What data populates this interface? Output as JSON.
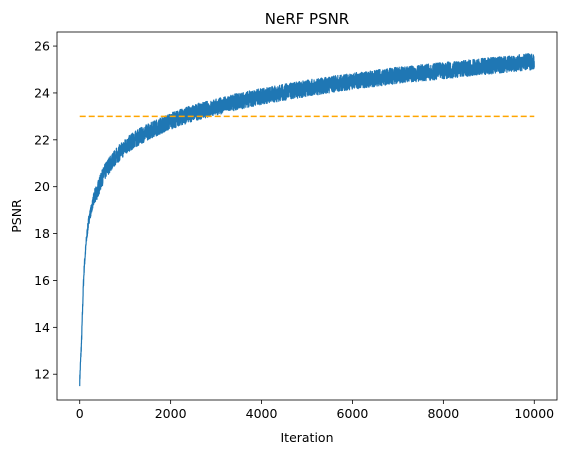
{
  "chart_data": {
    "type": "line",
    "title": "NeRF PSNR",
    "xlabel": "Iteration",
    "ylabel": "PSNR",
    "xlim": [
      -500,
      10500
    ],
    "ylim": [
      10.9,
      26.6
    ],
    "x_ticks": [
      0,
      2000,
      4000,
      6000,
      8000,
      10000
    ],
    "y_ticks": [
      12,
      14,
      16,
      18,
      20,
      22,
      24,
      26
    ],
    "grid": false,
    "legend": "none",
    "series": [
      {
        "style": "solid",
        "color": "#1f77b4",
        "noise_band": 0.35,
        "points": [
          [
            0,
            11.7
          ],
          [
            20,
            12.6
          ],
          [
            40,
            13.4
          ],
          [
            60,
            14.6
          ],
          [
            80,
            15.8
          ],
          [
            100,
            16.6
          ],
          [
            150,
            17.8
          ],
          [
            200,
            18.6
          ],
          [
            300,
            19.4
          ],
          [
            400,
            19.9
          ],
          [
            500,
            20.4
          ],
          [
            600,
            20.8
          ],
          [
            800,
            21.3
          ],
          [
            1000,
            21.7
          ],
          [
            1200,
            22.0
          ],
          [
            1500,
            22.35
          ],
          [
            2000,
            22.8
          ],
          [
            2500,
            23.15
          ],
          [
            3000,
            23.4
          ],
          [
            3500,
            23.65
          ],
          [
            4000,
            23.85
          ],
          [
            5000,
            24.2
          ],
          [
            6000,
            24.5
          ],
          [
            7000,
            24.75
          ],
          [
            8000,
            24.95
          ],
          [
            9000,
            25.15
          ],
          [
            10000,
            25.35
          ]
        ]
      },
      {
        "style": "dashed",
        "color": "#ffa500",
        "points": [
          [
            0,
            23.0
          ],
          [
            10000,
            23.0
          ]
        ]
      }
    ]
  }
}
